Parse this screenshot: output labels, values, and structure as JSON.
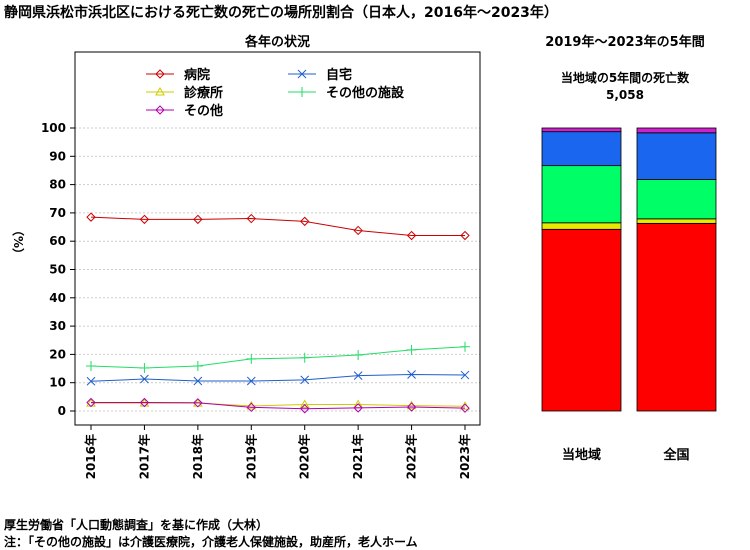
{
  "title": "静岡県浜松市浜北区における死亡数の死亡の場所別割合（日本人，2016年～2023年）",
  "footnotes": [
    "厚生労働省「人口動態調査」を基に作成（大林）",
    "注：「その他の施設」は介護医療院，介護老人保健施設，助産所，老人ホーム"
  ],
  "chart_data": [
    {
      "type": "line",
      "title": "各年の状況",
      "ylabel": "（%）",
      "xlabel": "",
      "ylim": [
        0,
        100
      ],
      "yticks": [
        0,
        10,
        20,
        30,
        40,
        50,
        60,
        70,
        80,
        90,
        100
      ],
      "grid": true,
      "legend": "top",
      "categories": [
        "2016年",
        "2017年",
        "2018年",
        "2019年",
        "2020年",
        "2021年",
        "2022年",
        "2023年"
      ],
      "series": [
        {
          "name": "病院",
          "color": "#CC0000",
          "marker": "diamond-open",
          "values": [
            68.5,
            67.7,
            67.7,
            68.0,
            67.0,
            63.8,
            62.0,
            62.0
          ]
        },
        {
          "name": "自宅",
          "color": "#1F5FCC",
          "marker": "x",
          "values": [
            10.5,
            11.3,
            10.6,
            10.6,
            11.0,
            12.5,
            12.9,
            12.7
          ]
        },
        {
          "name": "診療所",
          "color": "#CCCC00",
          "marker": "triangle-open",
          "values": [
            2.8,
            2.8,
            2.8,
            1.8,
            2.3,
            2.3,
            1.9,
            1.7
          ]
        },
        {
          "name": "その他",
          "color": "#B000B0",
          "marker": "diamond-open",
          "values": [
            3.0,
            3.0,
            2.9,
            1.3,
            0.8,
            1.1,
            1.4,
            1.0
          ]
        },
        {
          "name": "その他の施設",
          "color": "#22DD66",
          "marker": "plus",
          "values": [
            15.9,
            15.2,
            15.9,
            18.4,
            18.8,
            19.8,
            21.6,
            22.7
          ]
        }
      ]
    },
    {
      "type": "bar",
      "stacked": true,
      "title": "2019年～2023年の5年間",
      "subtitle_lines": [
        "当地域の5年間の死亡数",
        "5,058"
      ],
      "categories": [
        "当地域",
        "全国"
      ],
      "ylim": [
        0,
        100
      ],
      "series": [
        {
          "name": "病院",
          "color": "#FF0000",
          "values": [
            64.2,
            66.3
          ]
        },
        {
          "name": "診療所",
          "color": "#E8E800",
          "values": [
            2.3,
            1.6
          ]
        },
        {
          "name": "その他の施設",
          "color": "#00FF66",
          "values": [
            20.2,
            13.9
          ]
        },
        {
          "name": "自宅",
          "color": "#1A66EE",
          "values": [
            12.0,
            16.5
          ]
        },
        {
          "name": "その他",
          "color": "#CC22CC",
          "values": [
            1.3,
            1.7
          ]
        }
      ]
    }
  ]
}
